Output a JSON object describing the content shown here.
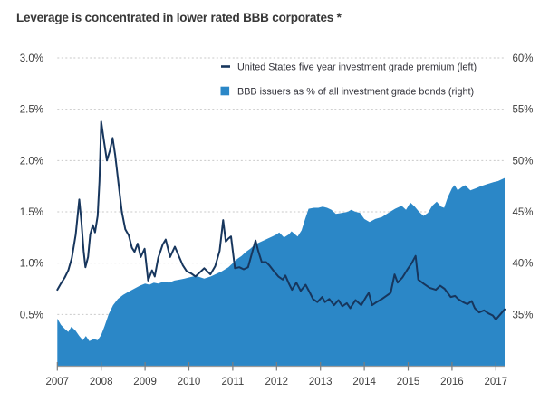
{
  "title": "Leverage is concentrated in lower rated BBB corporates *",
  "colors": {
    "line_series": "#17365d",
    "area_series": "#2b87c7",
    "grid": "#c9c9c9",
    "axis_line": "#9b9b9b",
    "tick": "#7d7d7d",
    "axis_text": "#3d3d3d",
    "legend_text": "#32323a",
    "title_text": "#383838",
    "background": "#ffffff"
  },
  "chart_data": {
    "type": "line",
    "title": "Leverage is concentrated in lower rated BBB corporates *",
    "grid": "dashed-horizontal",
    "legend_position": "inside-top",
    "x_domain": [
      2007,
      2017.2
    ],
    "x_tick_years": [
      "2007",
      "2008",
      "2009",
      "2010",
      "2011",
      "2012",
      "2013",
      "2014",
      "2015",
      "2016",
      "2017"
    ],
    "left_axis": {
      "domain": [
        0,
        3
      ],
      "tick_values": [
        3.0,
        2.5,
        2.0,
        1.5,
        1.0,
        0.5
      ],
      "tick_labels": [
        "3.0%",
        "2.5%",
        "2.0%",
        "1.5%",
        "1.0%",
        "0.5%"
      ]
    },
    "right_axis": {
      "domain": [
        30,
        60
      ],
      "tick_values": [
        60,
        55,
        50,
        45,
        40,
        35
      ],
      "tick_labels": [
        "60%",
        "55%",
        "50%",
        "45%",
        "40%",
        "35%"
      ]
    },
    "series": [
      {
        "name": "United States five year investment grade premium (left)",
        "type": "line",
        "axis": "left",
        "marker": "dash",
        "points": [
          [
            2007.0,
            0.74
          ],
          [
            2007.08,
            0.8
          ],
          [
            2007.17,
            0.86
          ],
          [
            2007.25,
            0.93
          ],
          [
            2007.33,
            1.05
          ],
          [
            2007.42,
            1.28
          ],
          [
            2007.5,
            1.62
          ],
          [
            2007.55,
            1.4
          ],
          [
            2007.6,
            1.12
          ],
          [
            2007.64,
            0.96
          ],
          [
            2007.7,
            1.06
          ],
          [
            2007.75,
            1.28
          ],
          [
            2007.81,
            1.37
          ],
          [
            2007.86,
            1.3
          ],
          [
            2007.92,
            1.46
          ],
          [
            2007.96,
            1.8
          ],
          [
            2008.0,
            2.38
          ],
          [
            2008.06,
            2.2
          ],
          [
            2008.13,
            2.0
          ],
          [
            2008.2,
            2.1
          ],
          [
            2008.26,
            2.22
          ],
          [
            2008.32,
            2.05
          ],
          [
            2008.38,
            1.83
          ],
          [
            2008.47,
            1.5
          ],
          [
            2008.55,
            1.33
          ],
          [
            2008.63,
            1.27
          ],
          [
            2008.7,
            1.15
          ],
          [
            2008.76,
            1.11
          ],
          [
            2008.83,
            1.19
          ],
          [
            2008.9,
            1.06
          ],
          [
            2008.99,
            1.14
          ],
          [
            2009.07,
            0.83
          ],
          [
            2009.16,
            0.93
          ],
          [
            2009.22,
            0.87
          ],
          [
            2009.3,
            1.05
          ],
          [
            2009.4,
            1.18
          ],
          [
            2009.47,
            1.23
          ],
          [
            2009.57,
            1.06
          ],
          [
            2009.68,
            1.16
          ],
          [
            2009.79,
            1.05
          ],
          [
            2009.86,
            0.98
          ],
          [
            2009.95,
            0.92
          ],
          [
            2010.05,
            0.9
          ],
          [
            2010.15,
            0.87
          ],
          [
            2010.25,
            0.91
          ],
          [
            2010.35,
            0.95
          ],
          [
            2010.49,
            0.89
          ],
          [
            2010.6,
            0.97
          ],
          [
            2010.7,
            1.12
          ],
          [
            2010.78,
            1.42
          ],
          [
            2010.84,
            1.21
          ],
          [
            2010.9,
            1.24
          ],
          [
            2010.96,
            1.26
          ],
          [
            2011.05,
            0.95
          ],
          [
            2011.15,
            0.96
          ],
          [
            2011.25,
            0.94
          ],
          [
            2011.35,
            0.96
          ],
          [
            2011.44,
            1.1
          ],
          [
            2011.52,
            1.22
          ],
          [
            2011.58,
            1.12
          ],
          [
            2011.66,
            1.01
          ],
          [
            2011.76,
            1.01
          ],
          [
            2011.83,
            0.98
          ],
          [
            2011.94,
            0.92
          ],
          [
            2012.04,
            0.87
          ],
          [
            2012.14,
            0.84
          ],
          [
            2012.2,
            0.88
          ],
          [
            2012.28,
            0.8
          ],
          [
            2012.35,
            0.74
          ],
          [
            2012.45,
            0.81
          ],
          [
            2012.55,
            0.73
          ],
          [
            2012.66,
            0.79
          ],
          [
            2012.76,
            0.71
          ],
          [
            2012.83,
            0.65
          ],
          [
            2012.93,
            0.62
          ],
          [
            2013.04,
            0.67
          ],
          [
            2013.1,
            0.62
          ],
          [
            2013.2,
            0.65
          ],
          [
            2013.31,
            0.59
          ],
          [
            2013.41,
            0.64
          ],
          [
            2013.5,
            0.58
          ],
          [
            2013.6,
            0.61
          ],
          [
            2013.68,
            0.56
          ],
          [
            2013.8,
            0.64
          ],
          [
            2013.93,
            0.59
          ],
          [
            2014.04,
            0.67
          ],
          [
            2014.1,
            0.71
          ],
          [
            2014.18,
            0.59
          ],
          [
            2014.28,
            0.62
          ],
          [
            2014.4,
            0.65
          ],
          [
            2014.5,
            0.68
          ],
          [
            2014.6,
            0.71
          ],
          [
            2014.69,
            0.89
          ],
          [
            2014.76,
            0.81
          ],
          [
            2014.87,
            0.86
          ],
          [
            2014.97,
            0.93
          ],
          [
            2015.08,
            1.0
          ],
          [
            2015.17,
            1.07
          ],
          [
            2015.23,
            0.84
          ],
          [
            2015.35,
            0.8
          ],
          [
            2015.49,
            0.76
          ],
          [
            2015.63,
            0.74
          ],
          [
            2015.73,
            0.78
          ],
          [
            2015.83,
            0.75
          ],
          [
            2015.97,
            0.67
          ],
          [
            2016.07,
            0.68
          ],
          [
            2016.14,
            0.65
          ],
          [
            2016.25,
            0.62
          ],
          [
            2016.35,
            0.6
          ],
          [
            2016.45,
            0.63
          ],
          [
            2016.52,
            0.56
          ],
          [
            2016.62,
            0.52
          ],
          [
            2016.73,
            0.54
          ],
          [
            2016.83,
            0.51
          ],
          [
            2016.93,
            0.49
          ],
          [
            2017.0,
            0.45
          ],
          [
            2017.1,
            0.5
          ],
          [
            2017.2,
            0.55
          ]
        ]
      },
      {
        "name": "BBB issuers as % of all investment grade bonds (right)",
        "type": "area",
        "axis": "right",
        "marker": "square",
        "points": [
          [
            2007.0,
            34.6
          ],
          [
            2007.08,
            34.0
          ],
          [
            2007.17,
            33.6
          ],
          [
            2007.25,
            33.3
          ],
          [
            2007.32,
            33.8
          ],
          [
            2007.42,
            33.4
          ],
          [
            2007.5,
            32.9
          ],
          [
            2007.58,
            32.5
          ],
          [
            2007.65,
            32.9
          ],
          [
            2007.73,
            32.4
          ],
          [
            2007.83,
            32.6
          ],
          [
            2007.92,
            32.5
          ],
          [
            2008.0,
            33.0
          ],
          [
            2008.08,
            33.9
          ],
          [
            2008.17,
            35.0
          ],
          [
            2008.27,
            35.9
          ],
          [
            2008.38,
            36.5
          ],
          [
            2008.5,
            36.9
          ],
          [
            2008.62,
            37.2
          ],
          [
            2008.75,
            37.5
          ],
          [
            2008.88,
            37.8
          ],
          [
            2009.0,
            38.0
          ],
          [
            2009.1,
            37.9
          ],
          [
            2009.2,
            38.1
          ],
          [
            2009.3,
            38.0
          ],
          [
            2009.42,
            38.2
          ],
          [
            2009.55,
            38.1
          ],
          [
            2009.67,
            38.3
          ],
          [
            2009.8,
            38.4
          ],
          [
            2009.9,
            38.5
          ],
          [
            2010.0,
            38.6
          ],
          [
            2010.1,
            38.7
          ],
          [
            2010.2,
            38.7
          ],
          [
            2010.35,
            38.5
          ],
          [
            2010.5,
            38.7
          ],
          [
            2010.6,
            38.9
          ],
          [
            2010.75,
            39.2
          ],
          [
            2010.9,
            39.6
          ],
          [
            2011.0,
            40.0
          ],
          [
            2011.1,
            40.4
          ],
          [
            2011.2,
            40.7
          ],
          [
            2011.3,
            41.1
          ],
          [
            2011.4,
            41.4
          ],
          [
            2011.5,
            41.8
          ],
          [
            2011.6,
            42.0
          ],
          [
            2011.7,
            42.2
          ],
          [
            2011.8,
            42.4
          ],
          [
            2011.9,
            42.6
          ],
          [
            2012.0,
            42.8
          ],
          [
            2012.06,
            43.0
          ],
          [
            2012.17,
            42.5
          ],
          [
            2012.28,
            42.8
          ],
          [
            2012.34,
            43.1
          ],
          [
            2012.48,
            42.6
          ],
          [
            2012.57,
            43.2
          ],
          [
            2012.65,
            44.3
          ],
          [
            2012.73,
            45.3
          ],
          [
            2012.85,
            45.4
          ],
          [
            2012.95,
            45.4
          ],
          [
            2013.05,
            45.5
          ],
          [
            2013.15,
            45.4
          ],
          [
            2013.25,
            45.2
          ],
          [
            2013.35,
            44.8
          ],
          [
            2013.5,
            44.9
          ],
          [
            2013.62,
            45.0
          ],
          [
            2013.7,
            45.2
          ],
          [
            2013.8,
            45.0
          ],
          [
            2013.9,
            44.9
          ],
          [
            2014.0,
            44.3
          ],
          [
            2014.12,
            44.0
          ],
          [
            2014.25,
            44.3
          ],
          [
            2014.4,
            44.5
          ],
          [
            2014.55,
            44.9
          ],
          [
            2014.7,
            45.3
          ],
          [
            2014.85,
            45.6
          ],
          [
            2014.95,
            45.2
          ],
          [
            2015.05,
            45.9
          ],
          [
            2015.15,
            45.5
          ],
          [
            2015.25,
            45.0
          ],
          [
            2015.35,
            44.6
          ],
          [
            2015.45,
            44.9
          ],
          [
            2015.55,
            45.6
          ],
          [
            2015.65,
            46.0
          ],
          [
            2015.75,
            45.5
          ],
          [
            2015.82,
            45.4
          ],
          [
            2015.9,
            46.4
          ],
          [
            2016.0,
            47.3
          ],
          [
            2016.06,
            47.6
          ],
          [
            2016.13,
            47.1
          ],
          [
            2016.22,
            47.4
          ],
          [
            2016.3,
            47.6
          ],
          [
            2016.42,
            47.1
          ],
          [
            2016.55,
            47.3
          ],
          [
            2016.65,
            47.5
          ],
          [
            2016.8,
            47.7
          ],
          [
            2016.95,
            47.9
          ],
          [
            2017.05,
            48.0
          ],
          [
            2017.2,
            48.3
          ]
        ]
      }
    ]
  }
}
